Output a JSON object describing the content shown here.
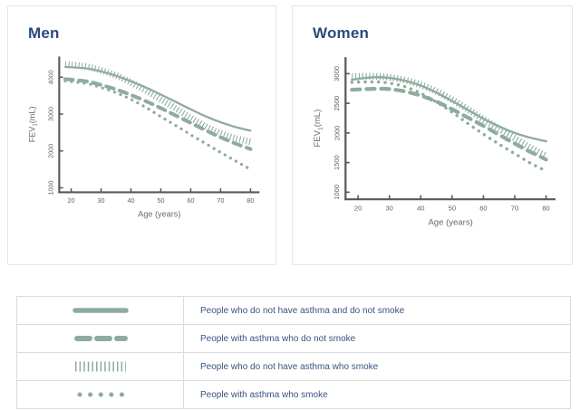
{
  "accent_green": "#8eac9d",
  "navy_text": "#2a4a7d",
  "axis_color": "#57585c",
  "tick_text_color": "#5f6064",
  "chart_data": [
    {
      "type": "line",
      "title": "Men",
      "xlabel": "Age (years)",
      "ylabel_parts": [
        "FEV",
        "1",
        "(mL)"
      ],
      "xlim": [
        16,
        83
      ],
      "ylim": [
        880,
        4560
      ],
      "xticks": [
        20,
        30,
        40,
        50,
        60,
        70,
        80
      ],
      "yticks": [
        1000,
        2000,
        3000,
        4000
      ],
      "x": [
        18,
        25,
        30,
        35,
        40,
        45,
        50,
        55,
        60,
        65,
        70,
        75,
        80
      ],
      "series": [
        {
          "name": "People who do not have asthma and do not smoke",
          "style": "solid",
          "values": [
            4280,
            4240,
            4160,
            4040,
            3890,
            3720,
            3530,
            3330,
            3130,
            2940,
            2780,
            2650,
            2550
          ]
        },
        {
          "name": "People with asthma who do not smoke",
          "style": "dashed",
          "values": [
            3950,
            3890,
            3790,
            3670,
            3520,
            3350,
            3160,
            2960,
            2760,
            2560,
            2370,
            2200,
            2050
          ]
        },
        {
          "name": "People who do not have asthma who smoke",
          "style": "hatch",
          "values": [
            4350,
            4290,
            4190,
            4050,
            3860,
            3640,
            3400,
            3150,
            2900,
            2670,
            2480,
            2340,
            2250
          ]
        },
        {
          "name": "People with asthma who smoke",
          "style": "dotted",
          "values": [
            3900,
            3830,
            3720,
            3580,
            3400,
            3180,
            2930,
            2690,
            2440,
            2200,
            1960,
            1730,
            1500
          ]
        }
      ]
    },
    {
      "type": "line",
      "title": "Women",
      "xlabel": "Age (years)",
      "ylabel_parts": [
        "FEV",
        "1",
        "(mL)"
      ],
      "xlim": [
        16,
        83
      ],
      "ylim": [
        880,
        3280
      ],
      "xticks": [
        20,
        30,
        40,
        50,
        60,
        70,
        80
      ],
      "yticks": [
        1000,
        1500,
        2000,
        2500,
        3000
      ],
      "x": [
        18,
        25,
        30,
        35,
        40,
        45,
        50,
        55,
        60,
        65,
        70,
        75,
        80
      ],
      "series": [
        {
          "name": "People who do not have asthma and do not smoke",
          "style": "solid",
          "values": [
            2900,
            2940,
            2930,
            2880,
            2800,
            2680,
            2540,
            2390,
            2240,
            2110,
            2000,
            1920,
            1860
          ]
        },
        {
          "name": "People with asthma who do not smoke",
          "style": "dashed",
          "values": [
            2730,
            2745,
            2740,
            2700,
            2630,
            2530,
            2400,
            2260,
            2120,
            1970,
            1820,
            1680,
            1550
          ]
        },
        {
          "name": "People who do not have asthma who smoke",
          "style": "hatch",
          "values": [
            2950,
            2955,
            2935,
            2890,
            2810,
            2700,
            2560,
            2400,
            2230,
            2070,
            1910,
            1750,
            1610
          ]
        },
        {
          "name": "People with asthma who smoke",
          "style": "dotted",
          "values": [
            2855,
            2862,
            2840,
            2780,
            2670,
            2520,
            2350,
            2160,
            1980,
            1810,
            1650,
            1490,
            1360
          ]
        }
      ]
    }
  ],
  "legend": {
    "rows": [
      {
        "style": "solid",
        "label": "People who do not have asthma and do not smoke"
      },
      {
        "style": "dashed",
        "label": "People with asthma who do not smoke"
      },
      {
        "style": "hatch",
        "label": "People who do not have asthma who smoke"
      },
      {
        "style": "dotted",
        "label": "People with asthma who smoke"
      }
    ]
  }
}
